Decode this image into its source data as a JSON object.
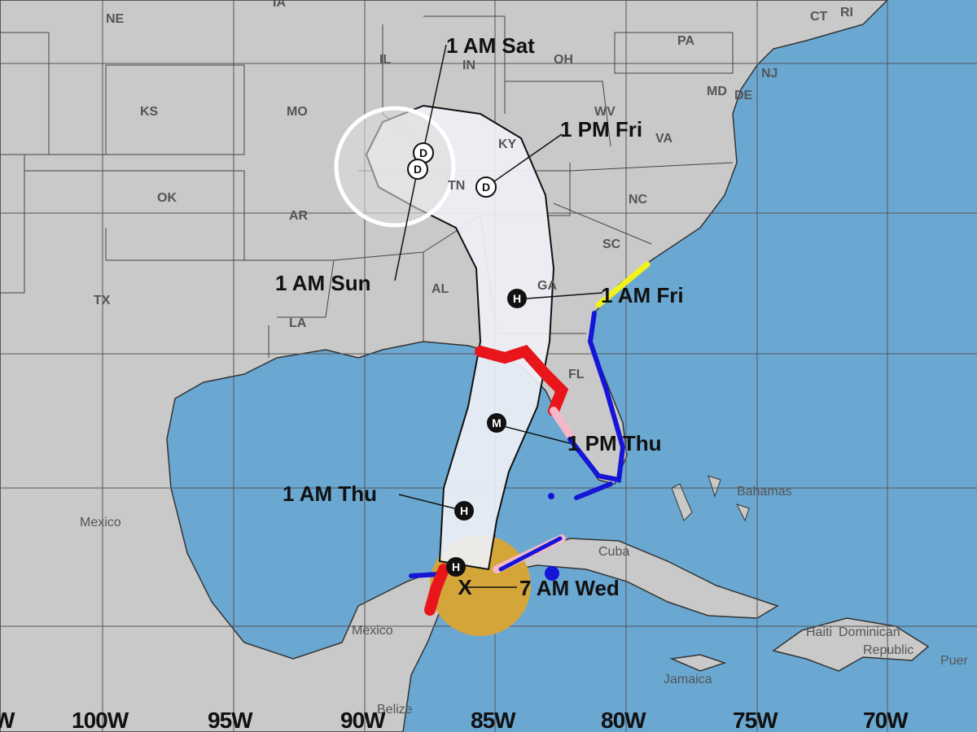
{
  "colors": {
    "ocean": "#6aa8d2",
    "land": "#c9c9c9",
    "cone": "#f2f2f2",
    "hurricane_warning": "#e8151b",
    "hurricane_watch": "#f4b9c8",
    "tropical_storm_warning": "#1515d8",
    "tropical_storm_watch": "#f2f21a",
    "wind_area": "#d4a63a"
  },
  "states": [
    "NE",
    "IA",
    "KS",
    "MO",
    "IL",
    "IN",
    "OH",
    "PA",
    "WV",
    "VA",
    "KY",
    "TN",
    "NC",
    "OK",
    "AR",
    "SC",
    "AL",
    "GA",
    "TX",
    "LA",
    "FL",
    "CT",
    "RI",
    "NJ",
    "MD",
    "DE"
  ],
  "places": {
    "mexico_1": "Mexico",
    "mexico_2": "Mexico",
    "bahamas": "Bahamas",
    "cuba": "Cuba",
    "haiti": "Haiti",
    "dominican": "Dominican",
    "republic": "Republic",
    "jamaica": "Jamaica",
    "belize": "Belize",
    "puerto": "Puer"
  },
  "forecast_points": [
    {
      "label": "7 AM Wed",
      "marker": "X"
    },
    {
      "label": "1 AM Thu",
      "marker": "H"
    },
    {
      "label": "1 PM Thu",
      "marker": "M"
    },
    {
      "label": "1 AM Fri",
      "marker": "H"
    },
    {
      "label": "1 PM Fri",
      "marker": "D"
    },
    {
      "label": "1 AM Sat",
      "marker": "D"
    },
    {
      "label": "1 AM Sun",
      "marker": "D"
    }
  ],
  "extra_marker": "H",
  "longitude_labels": [
    "W",
    "100W",
    "95W",
    "90W",
    "85W",
    "80W",
    "75W",
    "70W"
  ]
}
